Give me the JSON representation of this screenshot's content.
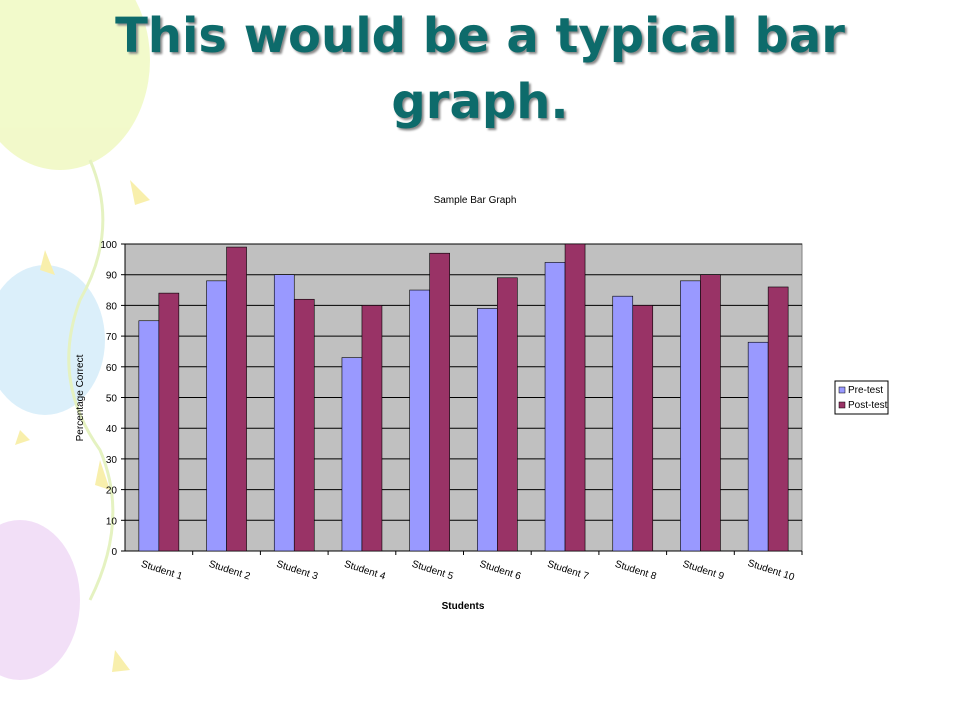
{
  "slide": {
    "title": "This would be a typical bar graph."
  },
  "chart_data": {
    "type": "bar",
    "title": "Sample Bar Graph",
    "x_label": "Students",
    "y_label": "Percentage Correct",
    "categories": [
      "Student 1",
      "Student 2",
      "Student 3",
      "Student 4",
      "Student 5",
      "Student 6",
      "Student 7",
      "Student 8",
      "Student 9",
      "Student 10"
    ],
    "series": [
      {
        "name": "Pre-test",
        "color": "#9999ff",
        "values": [
          75,
          88,
          90,
          63,
          85,
          79,
          94,
          83,
          88,
          68
        ]
      },
      {
        "name": "Post-test",
        "color": "#993366",
        "values": [
          84,
          99,
          82,
          80,
          97,
          89,
          100,
          80,
          90,
          86
        ]
      }
    ],
    "ylim": [
      0,
      100
    ],
    "yticks": [
      0,
      10,
      20,
      30,
      40,
      50,
      60,
      70,
      80,
      90,
      100
    ],
    "grid": true,
    "legend": "right"
  }
}
